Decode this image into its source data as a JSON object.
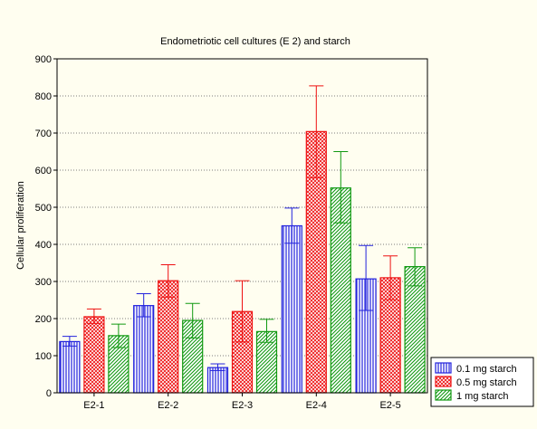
{
  "chart_data": {
    "type": "bar",
    "title": "Endometriotic cell cultures (E 2) and starch",
    "xlabel": "",
    "ylabel": "Cellular proliferation",
    "ylim": [
      0,
      900
    ],
    "yticks": [
      0,
      100,
      200,
      300,
      400,
      500,
      600,
      700,
      800,
      900
    ],
    "grid": "horizontal dotted",
    "legend_position": "bottom-right",
    "categories": [
      "E2-1",
      "E2-2",
      "E2-3",
      "E2-4",
      "E2-5"
    ],
    "series": [
      {
        "name": "0.1 mg starch",
        "color": "#2222dd",
        "fill": "#ffffff",
        "pattern": "vertical",
        "values": [
          138,
          235,
          68,
          450,
          307
        ],
        "err_low": [
          126,
          205,
          60,
          403,
          222
        ],
        "err_high": [
          152,
          267,
          78,
          498,
          397
        ]
      },
      {
        "name": "0.5 mg starch",
        "color": "#ee1111",
        "fill": "#ffffff",
        "pattern": "crosshatch",
        "values": [
          205,
          302,
          219,
          704,
          310
        ],
        "err_low": [
          187,
          258,
          137,
          580,
          251
        ],
        "err_high": [
          226,
          345,
          302,
          827,
          369
        ]
      },
      {
        "name": "1 mg starch",
        "color": "#119911",
        "fill": "#ffffff",
        "pattern": "diagonal",
        "values": [
          154,
          195,
          165,
          552,
          340
        ],
        "err_low": [
          122,
          148,
          136,
          458,
          288
        ],
        "err_high": [
          185,
          241,
          198,
          650,
          391
        ]
      }
    ]
  }
}
